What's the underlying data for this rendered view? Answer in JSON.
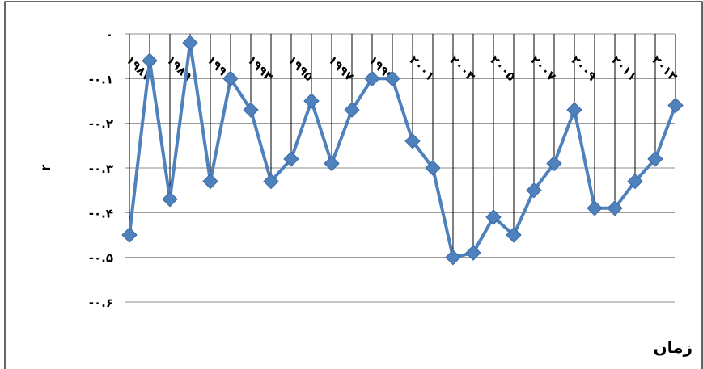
{
  "chart_data": {
    "type": "line",
    "title": "",
    "xlabel": "زمان",
    "ylabel": "r",
    "ylim": [
      -0.6,
      0
    ],
    "yticks": [
      0,
      -0.1,
      -0.2,
      -0.3,
      -0.4,
      -0.5,
      -0.6
    ],
    "ytick_labels": [
      "۰",
      "-۰.۱",
      "-۰.۲",
      "-۰.۳",
      "-۰.۴",
      "-۰.۵",
      "-۰.۶"
    ],
    "x": [
      1987,
      1988,
      1989,
      1990,
      1991,
      1992,
      1993,
      1994,
      1995,
      1996,
      1997,
      1998,
      1999,
      2000,
      2001,
      2002,
      2003,
      2004,
      2005,
      2006,
      2007,
      2008,
      2009,
      2010,
      2011,
      2012,
      2013,
      2014
    ],
    "xtick_labels": [
      "۱۹۸۷",
      "۱۹۸۹",
      "۱۹۹۱",
      "۱۹۹۳",
      "۱۹۹۵",
      "۱۹۹۷",
      "۱۹۹۹",
      "۲۰۰۱",
      "۲۰۰۳",
      "۲۰۰۵",
      "۲۰۰۷",
      "۲۰۰۹",
      "۲۰۱۱",
      "۲۰۱۳"
    ],
    "series": [
      {
        "values": [
          -0.45,
          -0.06,
          -0.37,
          -0.02,
          -0.33,
          -0.1,
          -0.17,
          -0.33,
          -0.28,
          -0.15,
          -0.29,
          -0.17,
          -0.1,
          -0.1,
          -0.24,
          -0.3,
          -0.5,
          -0.49,
          -0.41,
          -0.45,
          -0.35,
          -0.29,
          -0.17,
          -0.39,
          -0.39,
          -0.33,
          -0.28,
          -0.16
        ],
        "color": "#4F81BD"
      }
    ],
    "grid": true,
    "legend": "none"
  }
}
